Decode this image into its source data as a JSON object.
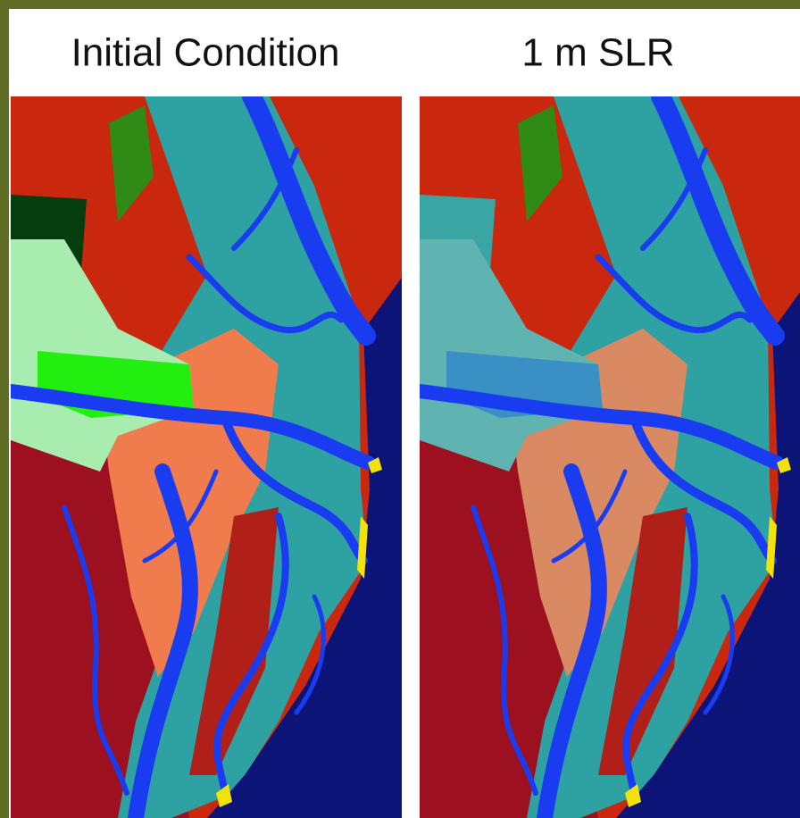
{
  "panels": [
    {
      "title": "Initial Condition"
    },
    {
      "title": "1 m SLR"
    }
  ]
}
